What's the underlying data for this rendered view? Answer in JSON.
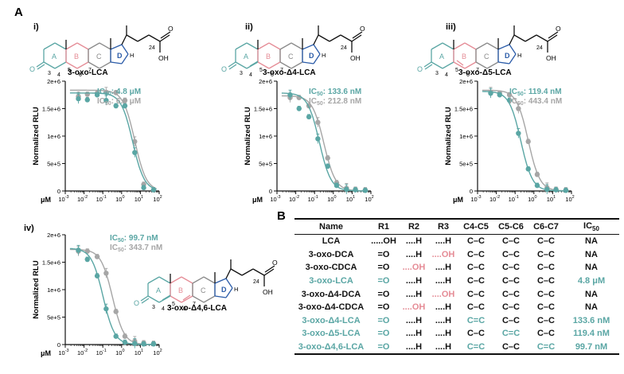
{
  "colors": {
    "teal": "#5aa6a4",
    "gray": "#a6a6a6",
    "pink": "#e58c96",
    "blue": "#2a5ba8"
  },
  "panel_letters": {
    "a": "A",
    "b": "B"
  },
  "panel_labels": [
    "i)",
    "ii)",
    "iii)",
    "iv)"
  ],
  "ring_labels": {
    "A": "A",
    "B": "B",
    "C": "C",
    "D": "D",
    "H": "H"
  },
  "atom_labels": [
    "3",
    "4",
    "5",
    "6",
    "7",
    "24"
  ],
  "oxygen_labels": {
    "o": "O",
    "oh": "OH"
  },
  "compounds": [
    "3-oxo-LCA",
    "3-oxo-Δ4-LCA",
    "3-oxo-Δ5-LCA",
    "3-oxo-Δ4,6-LCA"
  ],
  "axis": {
    "ylabel": "Normalized RLU",
    "xunit": "μM",
    "y_ticks": [
      "0",
      "5e+5",
      "1e+6",
      "1.5e+6",
      "2e+6"
    ],
    "x_ticks_base": "10",
    "x_ticks_exp": [
      "-3",
      "-2",
      "-1",
      "0",
      "1",
      "2"
    ]
  },
  "ic50": [
    {
      "teal_label": "IC",
      "teal_sub": "50",
      "teal_value": ": 4.8 μM",
      "gray_label": "IC",
      "gray_sub": "50",
      "gray_value": ": 6.0 μM"
    },
    {
      "teal_label": "IC",
      "teal_sub": "50",
      "teal_value": ": 133.6 nM",
      "gray_label": "IC",
      "gray_sub": "50",
      "gray_value": ": 212.8 nM"
    },
    {
      "teal_label": "IC",
      "teal_sub": "50",
      "teal_value": ": 119.4 nM",
      "gray_label": "IC",
      "gray_sub": "50",
      "gray_value": ": 443.4 nM"
    },
    {
      "teal_label": "IC",
      "teal_sub": "50",
      "teal_value": ": 99.7 nM",
      "gray_label": "IC",
      "gray_sub": "50",
      "gray_value": ": 343.7 nM"
    }
  ],
  "chart_data": [
    {
      "type": "scatter",
      "panel": "i)",
      "xscale": "log",
      "xlim": [
        0.001,
        100
      ],
      "ylim": [
        0,
        2000000
      ],
      "xlabel": "μM",
      "ylabel": "Normalized RLU",
      "series": [
        {
          "color": "teal",
          "x": [
            0.005,
            0.015,
            0.05,
            0.15,
            0.5,
            1.5,
            5,
            15,
            50
          ],
          "y": [
            1680000,
            1660000,
            1750000,
            1650000,
            1550000,
            1550000,
            700000,
            60000,
            20000
          ]
        },
        {
          "color": "gray",
          "x": [
            0.005,
            0.015,
            0.05,
            0.15,
            0.5,
            1.5,
            5,
            15,
            50
          ],
          "y": [
            1720000,
            1760000,
            1780000,
            1800000,
            1790000,
            1650000,
            900000,
            120000,
            20000
          ]
        }
      ]
    },
    {
      "type": "scatter",
      "panel": "ii)",
      "xscale": "log",
      "xlim": [
        0.001,
        100
      ],
      "ylim": [
        0,
        2000000
      ],
      "xlabel": "μM",
      "ylabel": "Normalized RLU",
      "series": [
        {
          "color": "teal",
          "x": [
            0.005,
            0.015,
            0.05,
            0.15,
            0.5,
            1.5,
            5,
            15,
            50
          ],
          "y": [
            1750000,
            1500000,
            1350000,
            950000,
            450000,
            100000,
            30000,
            20000,
            10000
          ]
        },
        {
          "color": "gray",
          "x": [
            0.005,
            0.015,
            0.05,
            0.15,
            0.5,
            1.5,
            5,
            15,
            50
          ],
          "y": [
            1700000,
            1700000,
            1550000,
            1250000,
            600000,
            150000,
            50000,
            30000,
            20000
          ]
        }
      ]
    },
    {
      "type": "scatter",
      "panel": "iii)",
      "xscale": "log",
      "xlim": [
        0.001,
        100
      ],
      "ylim": [
        0,
        2000000
      ],
      "xlabel": "μM",
      "ylabel": "Normalized RLU",
      "series": [
        {
          "color": "teal",
          "x": [
            0.005,
            0.015,
            0.05,
            0.15,
            0.5,
            1.5,
            5,
            15,
            50
          ],
          "y": [
            1780000,
            1750000,
            1650000,
            1050000,
            400000,
            100000,
            30000,
            20000,
            10000
          ]
        },
        {
          "color": "gray",
          "x": [
            0.005,
            0.015,
            0.05,
            0.15,
            0.5,
            1.5,
            5,
            15,
            50
          ],
          "y": [
            1800000,
            1780000,
            1750000,
            1500000,
            900000,
            300000,
            60000,
            30000,
            20000
          ]
        }
      ]
    },
    {
      "type": "scatter",
      "panel": "iv)",
      "xscale": "log",
      "xlim": [
        0.001,
        100
      ],
      "ylim": [
        0,
        2000000
      ],
      "xlabel": "μM",
      "ylabel": "Normalized RLU",
      "series": [
        {
          "color": "teal",
          "x": [
            0.005,
            0.015,
            0.05,
            0.15,
            0.5,
            1.5,
            5,
            15,
            50
          ],
          "y": [
            1720000,
            1550000,
            1250000,
            650000,
            150000,
            40000,
            20000,
            10000,
            10000
          ]
        },
        {
          "color": "gray",
          "x": [
            0.005,
            0.015,
            0.05,
            0.15,
            0.5,
            1.5,
            5,
            15,
            50
          ],
          "y": [
            1700000,
            1700000,
            1600000,
            1300000,
            600000,
            150000,
            60000,
            30000,
            20000
          ]
        }
      ]
    }
  ],
  "table": {
    "headers": [
      "Name",
      "R1",
      "R2",
      "R3",
      "C4-C5",
      "C5-C6",
      "C6-C7",
      "IC"
    ],
    "ic_sub": "50",
    "rows": [
      {
        "name": "LCA",
        "r1": ".....OH",
        "r2": "....H",
        "r3": "....H",
        "c45": "C–C",
        "c56": "C–C",
        "c67": "C–C",
        "ic50": "NA",
        "style": "normal"
      },
      {
        "name": "3-oxo-DCA",
        "r1": "=O",
        "r2": "....H",
        "r3": "....OH",
        "c45": "C–C",
        "c56": "C–C",
        "c67": "C–C",
        "ic50": "NA",
        "style": "normal"
      },
      {
        "name": "3-oxo-CDCA",
        "r1": "=O",
        "r2": "....OH",
        "r3": "....H",
        "c45": "C–C",
        "c56": "C–C",
        "c67": "C–C",
        "ic50": "NA",
        "style": "normal"
      },
      {
        "name": "3-oxo-LCA",
        "r1": "=O",
        "r2": "....H",
        "r3": "....H",
        "c45": "C–C",
        "c56": "C–C",
        "c67": "C–C",
        "ic50": "4.8 μM",
        "style": "teal"
      },
      {
        "name": "3-oxo-Δ4-DCA",
        "r1": "=O",
        "r2": "....H",
        "r3": "....OH",
        "c45": "C–C",
        "c56": "C–C",
        "c67": "C–C",
        "ic50": "NA",
        "style": "normal"
      },
      {
        "name": "3-oxo-Δ4-CDCA",
        "r1": "=O",
        "r2": "....OH",
        "r3": "....H",
        "c45": "C–C",
        "c56": "C–C",
        "c67": "C–C",
        "ic50": "NA",
        "style": "normal"
      },
      {
        "name": "3-oxo-Δ4-LCA",
        "r1": "=O",
        "r2": "....H",
        "r3": "....H",
        "c45": "C=C",
        "c56": "C–C",
        "c67": "C–C",
        "ic50": "133.6 nM",
        "style": "teal"
      },
      {
        "name": "3-oxo-Δ5-LCA",
        "r1": "=O",
        "r2": "....H",
        "r3": "....H",
        "c45": "C–C",
        "c56": "C=C",
        "c67": "C–C",
        "ic50": "119.4 nM",
        "style": "teal"
      },
      {
        "name": "3-oxo-Δ4,6-LCA",
        "r1": "=O",
        "r2": "....H",
        "r3": "....H",
        "c45": "C=C",
        "c56": "C–C",
        "c67": "C=C",
        "ic50": "99.7 nM",
        "style": "teal"
      }
    ]
  }
}
